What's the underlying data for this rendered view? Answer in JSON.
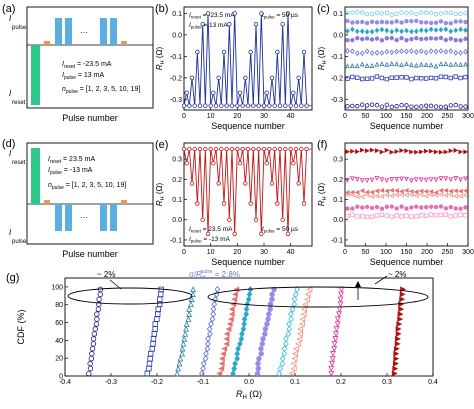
{
  "panels": {
    "a": {
      "label": "(a)",
      "ylabel_top": "I",
      "ylabel_top_sub": "pulse",
      "ylabel_bottom": "I",
      "ylabel_bottom_sub": "reset",
      "xlabel": "Pulse number",
      "ellipsis": "···",
      "line1": "I",
      "line1_sub": "reset",
      "line1_val": " = -23.5 mA",
      "line2": "I",
      "line2_sub": "pulse",
      "line2_val": " = 13 mA",
      "line3": "n",
      "line3_sub": "pulse",
      "line3_val": " = [1, 2, 3, 5, 10, 19]"
    },
    "d": {
      "label": "(d)",
      "ylabel_top": "I",
      "ylabel_top_sub": "reset",
      "ylabel_bottom": "I",
      "ylabel_bottom_sub": "pulse",
      "xlabel": "Pulse number",
      "ellipsis": "···",
      "line1": "I",
      "line1_sub": "reset",
      "line1_val": " = 23.5 mA",
      "line2": "I",
      "line2_sub": "pulse",
      "line2_val": " = -13 mA",
      "line3": "n",
      "line3_sub": "pulse",
      "line3_val": " = [1, 2, 3, 5, 10, 19]"
    },
    "g_annot": {
      "left_pct": "~ 2%",
      "right_pct": "~ 2%",
      "sigma_prefix": "σ/",
      "sigma_R": "R",
      "sigma_sub": "H",
      "sigma_sup": "pulse",
      "sigma_val": " = 2.8%"
    }
  },
  "colors": {
    "blue_dark": "#1f2fa0",
    "red_dark": "#c01818",
    "teal": "#2ec98a",
    "pulse": "#5aafe0",
    "orange": "#e09a5a"
  },
  "chart_data": [
    {
      "id": "b",
      "type": "line",
      "label": "(b)",
      "xlabel": "Sequence number",
      "ylabel": "R",
      "ylabel_sub": "H",
      "ylabel_unit": " (Ω)",
      "xlim": [
        0,
        48
      ],
      "ylim": [
        -0.35,
        0.13
      ],
      "xticks": [
        0,
        10,
        20,
        30,
        40
      ],
      "yticks": [
        -0.3,
        -0.2,
        -0.1,
        0.0,
        0.1
      ],
      "ytick_labels": [
        "-0.3",
        "-0.2",
        "-0.1",
        "0.0",
        "0.1"
      ],
      "legend_left_1": "I",
      "legend_left_1_sub": "reset",
      "legend_left_1_val": " = -23.5 mA",
      "legend_left_2": "I",
      "legend_left_2_sub": "pulse",
      "legend_left_2_val": " = 13 mA",
      "legend_right": "t",
      "legend_right_sub": "pulse",
      "legend_right_val": " = 50 µs",
      "series": [
        {
          "color": "#1f2fa0",
          "x": [
            0,
            1,
            2,
            3,
            4,
            5,
            6,
            7,
            8,
            9,
            10,
            11,
            12,
            13,
            14,
            15,
            16,
            17,
            18,
            19,
            20,
            21,
            22,
            23,
            24,
            25,
            26,
            27,
            28,
            29,
            30,
            31,
            32,
            33,
            34,
            35,
            36,
            37,
            38,
            39,
            40,
            41,
            42,
            43,
            44,
            45,
            46
          ],
          "y": [
            -0.33,
            -0.27,
            -0.33,
            -0.2,
            -0.33,
            -0.08,
            -0.33,
            0.05,
            -0.33,
            0.1,
            -0.33,
            -0.27,
            -0.33,
            -0.2,
            -0.33,
            -0.08,
            -0.33,
            0.05,
            -0.33,
            0.1,
            -0.33,
            -0.27,
            -0.33,
            -0.2,
            -0.33,
            -0.08,
            -0.33,
            0.05,
            -0.33,
            0.1,
            -0.33,
            -0.27,
            -0.33,
            -0.2,
            -0.33,
            -0.08,
            -0.33,
            0.05,
            -0.33,
            0.1,
            -0.33,
            -0.27,
            -0.33,
            -0.2,
            -0.33,
            -0.08,
            -0.33
          ]
        }
      ]
    },
    {
      "id": "c",
      "type": "scatter",
      "label": "(c)",
      "xlabel": "Sequence number",
      "ylabel": "R",
      "ylabel_sub": "H",
      "ylabel_unit": " (Ω)",
      "xlim": [
        0,
        300
      ],
      "ylim": [
        -0.35,
        0.13
      ],
      "xticks": [
        0,
        50,
        100,
        150,
        200,
        250,
        300
      ],
      "yticks": [
        -0.3,
        -0.2,
        -0.1,
        0.0,
        0.1
      ],
      "ytick_labels": [
        "-0.3",
        "-0.2",
        "-0.1",
        "0.0",
        "0.1"
      ],
      "series": [
        {
          "marker": "circle-open",
          "color": "#1a1a8c",
          "level": -0.33
        },
        {
          "marker": "square-open",
          "color": "#2a3ab8",
          "level": -0.2
        },
        {
          "marker": "triangle-open",
          "color": "#2a7fa0",
          "level": -0.14
        },
        {
          "marker": "diamond-open",
          "color": "#5a6ad8",
          "level": -0.08
        },
        {
          "marker": "circle-filled",
          "color": "#8a7ae0",
          "level": -0.02
        },
        {
          "marker": "diamond-filled",
          "color": "#2aa8c8",
          "level": 0.02
        },
        {
          "marker": "circle-filled",
          "color": "#9a8ae8",
          "level": 0.06
        },
        {
          "marker": "circle-open",
          "color": "#7ac8e8",
          "level": 0.1
        }
      ]
    },
    {
      "id": "e",
      "type": "line",
      "label": "(e)",
      "xlabel": "Sequence number",
      "ylabel": "R",
      "ylabel_sub": "H",
      "ylabel_unit": " (Ω)",
      "xlim": [
        0,
        48
      ],
      "ylim": [
        -0.13,
        0.38
      ],
      "xticks": [
        0,
        10,
        20,
        30,
        40
      ],
      "yticks": [
        -0.1,
        0.0,
        0.1,
        0.2,
        0.3
      ],
      "ytick_labels": [
        "-0.1",
        "0.0",
        "0.1",
        "0.2",
        "0.3"
      ],
      "legend_left_1": "I",
      "legend_left_1_sub": "reset",
      "legend_left_1_val": " = 23.5 mA",
      "legend_left_2": "I",
      "legend_left_2_sub": "pulse",
      "legend_left_2_val": " = -13 mA",
      "legend_right": "t",
      "legend_right_sub": "pulse",
      "legend_right_val": " = 50 µs",
      "series": [
        {
          "color": "#c01818",
          "x": [
            0,
            1,
            2,
            3,
            4,
            5,
            6,
            7,
            8,
            9,
            10,
            11,
            12,
            13,
            14,
            15,
            16,
            17,
            18,
            19,
            20,
            21,
            22,
            23,
            24,
            25,
            26,
            27,
            28,
            29,
            30,
            31,
            32,
            33,
            34,
            35,
            36,
            37,
            38,
            39,
            40,
            41,
            42,
            43,
            44,
            45,
            46
          ],
          "y": [
            0.35,
            0.28,
            0.35,
            0.18,
            0.35,
            0.08,
            0.35,
            0.0,
            0.35,
            -0.07,
            0.35,
            0.28,
            0.35,
            0.18,
            0.35,
            0.08,
            0.35,
            0.0,
            0.35,
            -0.07,
            0.35,
            0.28,
            0.35,
            0.18,
            0.35,
            0.08,
            0.35,
            0.0,
            0.35,
            -0.07,
            0.35,
            0.28,
            0.35,
            0.18,
            0.35,
            0.08,
            0.35,
            0.0,
            0.35,
            -0.07,
            0.35,
            0.28,
            0.35,
            0.18,
            0.35,
            0.08,
            0.35
          ]
        }
      ]
    },
    {
      "id": "f",
      "type": "scatter",
      "label": "(f)",
      "xlabel": "Sequence number",
      "ylabel": "R",
      "ylabel_sub": "H",
      "ylabel_unit": " (Ω)",
      "xlim": [
        0,
        300
      ],
      "ylim": [
        -0.13,
        0.38
      ],
      "xticks": [
        0,
        50,
        100,
        150,
        200,
        250,
        300
      ],
      "yticks": [
        -0.1,
        0.0,
        0.1,
        0.2,
        0.3
      ],
      "ytick_labels": [
        "-0.1",
        "0.0",
        "0.1",
        "0.2",
        "0.3"
      ],
      "series": [
        {
          "marker": "triangle-right-filled",
          "color": "#b01010",
          "level": 0.34
        },
        {
          "marker": "triangle-down-open",
          "color": "#e0309a",
          "level": 0.2
        },
        {
          "marker": "triangle-left-filled",
          "color": "#e87070",
          "level": 0.14
        },
        {
          "marker": "triangle-left-open",
          "color": "#f09080",
          "level": 0.12
        },
        {
          "marker": "circle-filled",
          "color": "#e070b8",
          "level": 0.06
        },
        {
          "marker": "square-open",
          "color": "#f0a0c0",
          "level": 0.02
        }
      ]
    },
    {
      "id": "g",
      "type": "scatter",
      "label": "(g)",
      "xlabel": "R",
      "xlabel_sub": "H",
      "xlabel_unit": " (Ω)",
      "ylabel": "CDF (%)",
      "xlim": [
        -0.4,
        0.4
      ],
      "ylim": [
        0,
        110
      ],
      "xticks": [
        -0.4,
        -0.3,
        -0.2,
        -0.1,
        0.0,
        0.1,
        0.2,
        0.3,
        0.4
      ],
      "xtick_labels": [
        "-0.4",
        "-0.3",
        "-0.2",
        "-0.1",
        "0.0",
        "0.1",
        "0.2",
        "0.3",
        "0.4"
      ],
      "yticks": [
        0,
        20,
        40,
        60,
        80,
        100
      ],
      "series": [
        {
          "marker": "circle-open",
          "color": "#1a1a8c",
          "center": -0.335,
          "spread": 0.008
        },
        {
          "marker": "square-open",
          "color": "#2a3ab8",
          "center": -0.205,
          "spread": 0.01
        },
        {
          "marker": "triangle-open",
          "color": "#2a7fa0",
          "center": -0.138,
          "spread": 0.011
        },
        {
          "marker": "diamond-open",
          "color": "#5a6ad8",
          "center": -0.085,
          "spread": 0.011
        },
        {
          "marker": "triangle-left-filled",
          "color": "#e87070",
          "center": -0.045,
          "spread": 0.012
        },
        {
          "marker": "diamond-filled",
          "color": "#2aa8c8",
          "center": -0.015,
          "spread": 0.012
        },
        {
          "marker": "circle-filled",
          "color": "#9a8ae8",
          "center": 0.035,
          "spread": 0.012
        },
        {
          "marker": "diamond-open",
          "color": "#3ac0d8",
          "center": 0.085,
          "spread": 0.012
        },
        {
          "marker": "triangle-left-open",
          "color": "#f09080",
          "center": 0.112,
          "spread": 0.012
        },
        {
          "marker": "triangle-down-open",
          "color": "#e0309a",
          "center": 0.19,
          "spread": 0.008
        },
        {
          "marker": "triangle-right-filled",
          "color": "#b01010",
          "center": 0.325,
          "spread": 0.006
        }
      ]
    }
  ]
}
